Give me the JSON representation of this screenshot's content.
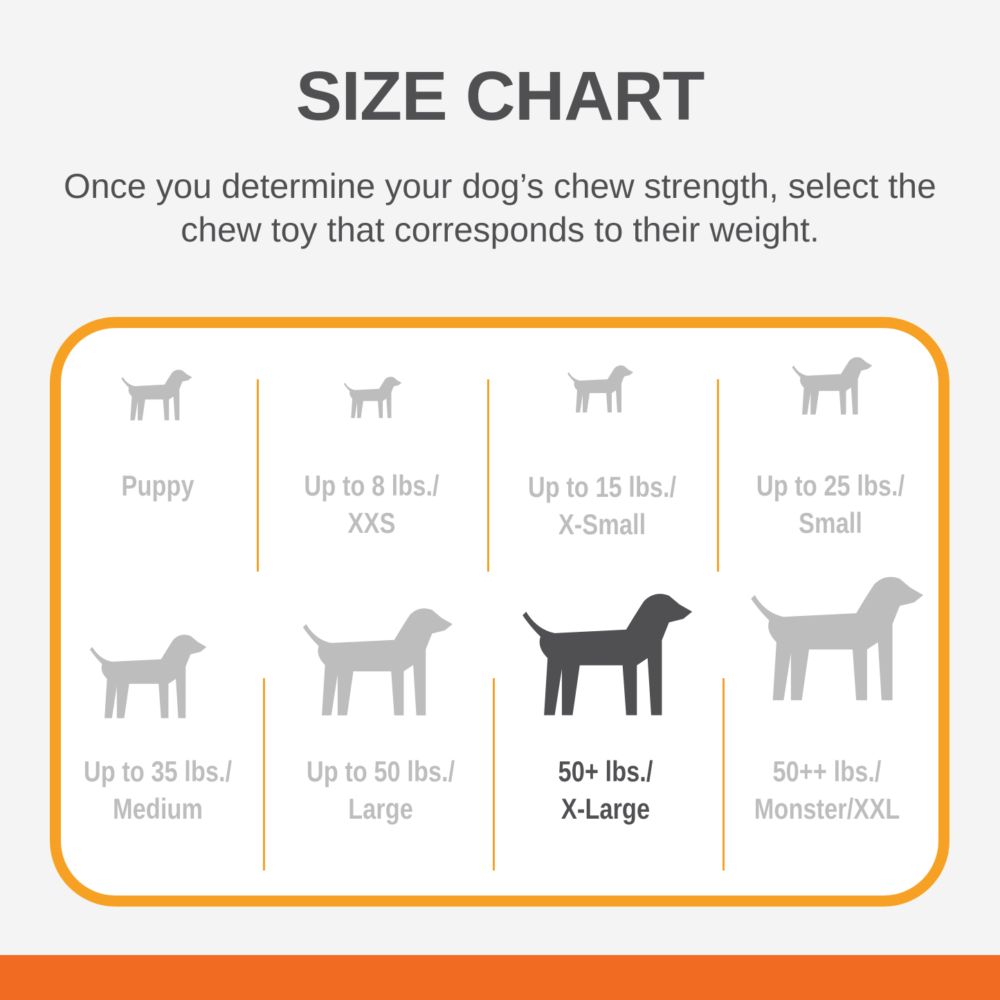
{
  "header": {
    "title": "SIZE CHART",
    "subtitle_line1": "Once you determine your dog’s chew strength, select the",
    "subtitle_line2": "chew toy that corresponds to their weight."
  },
  "colors": {
    "border": "#f7a124",
    "bottom_bar": "#f26b23",
    "inactive": "#bdbdbe",
    "active": "#505053"
  },
  "sizes": [
    {
      "line1": "Puppy",
      "line2": "",
      "icon": "puppy-icon",
      "active": false
    },
    {
      "line1": "Up to 8 lbs./",
      "line2": "XXS",
      "icon": "chihuahua-icon",
      "active": false
    },
    {
      "line1": "Up to 15 lbs./",
      "line2": "X-Small",
      "icon": "toy-dog-icon",
      "active": false
    },
    {
      "line1": "Up to 25 lbs./",
      "line2": "Small",
      "icon": "terrier-icon",
      "active": false
    },
    {
      "line1": "Up to 35 lbs./",
      "line2": "Medium",
      "icon": "beagle-icon",
      "active": false
    },
    {
      "line1": "Up to 50 lbs./",
      "line2": "Large",
      "icon": "labrador-icon",
      "active": false
    },
    {
      "line1": "50+ lbs./",
      "line2": "X-Large",
      "icon": "shepherd-icon",
      "active": true
    },
    {
      "line1": "50++ lbs./",
      "line2": "Monster/XXL",
      "icon": "great-dane-icon",
      "active": false
    }
  ]
}
